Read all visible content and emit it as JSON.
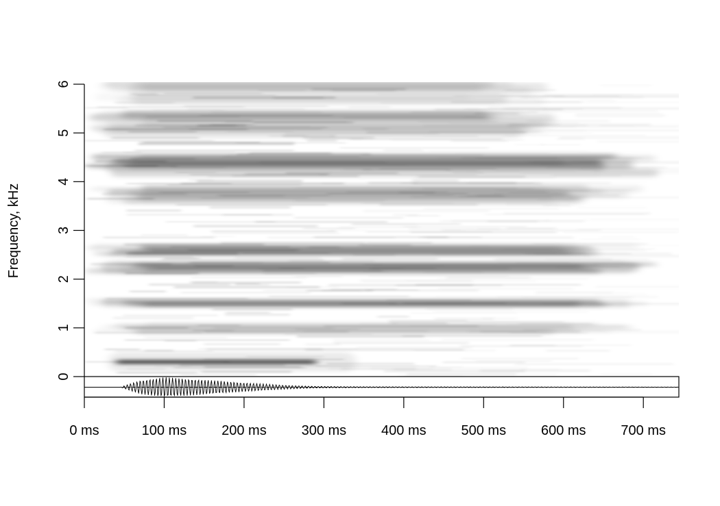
{
  "chart_data": {
    "type": "heatmap",
    "subtype": "spectrogram with oscillogram",
    "title": "",
    "xlabel": "",
    "ylabel": "Frequency, kHz",
    "x_unit": "ms",
    "xlim": [
      0,
      745
    ],
    "ylim": [
      0,
      6
    ],
    "x_ticks": [
      "0 ms",
      "100 ms",
      "200 ms",
      "300 ms",
      "400 ms",
      "500 ms",
      "600 ms",
      "700 ms"
    ],
    "x_tick_values": [
      0,
      100,
      200,
      300,
      400,
      500,
      600,
      700
    ],
    "y_ticks": [
      "0",
      "1",
      "2",
      "3",
      "4",
      "5",
      "6"
    ],
    "y_tick_values": [
      0,
      1,
      2,
      3,
      4,
      5,
      6
    ],
    "colormap": [
      "#ffffff",
      "#000000"
    ],
    "grid": false,
    "bands": [
      {
        "freq_khz": 0.3,
        "start_ms": 40,
        "end_ms": 290,
        "intensity": 0.95,
        "width_khz": 0.06
      },
      {
        "freq_khz": 0.95,
        "start_ms": 0,
        "end_ms": 700,
        "intensity": 0.22,
        "width_khz": 0.12
      },
      {
        "freq_khz": 1.5,
        "start_ms": 0,
        "end_ms": 710,
        "intensity": 0.28,
        "width_khz": 0.12
      },
      {
        "freq_khz": 2.2,
        "start_ms": 0,
        "end_ms": 720,
        "intensity": 0.32,
        "width_khz": 0.14
      },
      {
        "freq_khz": 2.55,
        "start_ms": 0,
        "end_ms": 710,
        "intensity": 0.3,
        "width_khz": 0.14
      },
      {
        "freq_khz": 3.7,
        "start_ms": 0,
        "end_ms": 700,
        "intensity": 0.22,
        "width_khz": 0.2
      },
      {
        "freq_khz": 4.3,
        "start_ms": 0,
        "end_ms": 720,
        "intensity": 0.38,
        "width_khz": 0.22
      },
      {
        "freq_khz": 5.2,
        "start_ms": 0,
        "end_ms": 600,
        "intensity": 0.18,
        "width_khz": 0.3
      },
      {
        "freq_khz": 5.8,
        "start_ms": 0,
        "end_ms": 580,
        "intensity": 0.12,
        "width_khz": 0.25
      }
    ],
    "oscillogram_envelope": {
      "time_ms": [
        0,
        45,
        70,
        100,
        150,
        200,
        250,
        290,
        350,
        745
      ],
      "amplitude": [
        0,
        0,
        0.7,
        1.0,
        0.75,
        0.45,
        0.2,
        0.08,
        0.04,
        0.02
      ]
    }
  }
}
